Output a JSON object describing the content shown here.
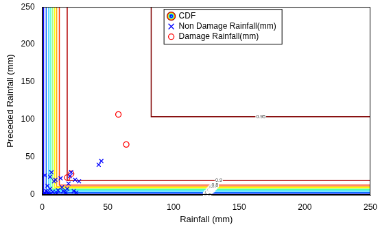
{
  "chart_data": {
    "type": "scatter",
    "x_label": "Rainfall (mm)",
    "y_label": "Preceded Rainfall (mm)",
    "xlim": [
      0,
      250
    ],
    "ylim": [
      0,
      250
    ],
    "xticks": [
      0,
      50,
      100,
      150,
      200,
      250
    ],
    "yticks": [
      0,
      50,
      100,
      150,
      200,
      250
    ],
    "grid": false,
    "legend": "top",
    "cdf": {
      "name": "CDF",
      "levels": [
        {
          "label": "0.1",
          "color": "#0000ff",
          "x": [
            1,
            1,
            250
          ],
          "y": [
            250,
            1,
            1
          ]
        },
        {
          "label": "0.2",
          "color": "#0066ff",
          "x": [
            3,
            3,
            250
          ],
          "y": [
            250,
            3,
            3
          ]
        },
        {
          "label": "0.3",
          "color": "#00ccff",
          "x": [
            5,
            5,
            250
          ],
          "y": [
            250,
            5,
            5
          ]
        },
        {
          "label": "0.4",
          "color": "#33ffcc",
          "x": [
            6.5,
            6.5,
            250
          ],
          "y": [
            250,
            6.5,
            6.5
          ]
        },
        {
          "label": "0.5",
          "color": "#99ff66",
          "x": [
            8,
            8,
            250
          ],
          "y": [
            250,
            8,
            8
          ]
        },
        {
          "label": "0.6",
          "color": "#ffff00",
          "x": [
            9.5,
            9.5,
            250
          ],
          "y": [
            250,
            9.5,
            9.5
          ]
        },
        {
          "label": "0.7",
          "color": "#ffaa00",
          "x": [
            11,
            11,
            250
          ],
          "y": [
            250,
            11,
            11
          ]
        },
        {
          "label": "0.8",
          "color": "#ff3300",
          "x": [
            13,
            13,
            250
          ],
          "y": [
            250,
            13,
            13
          ]
        },
        {
          "label": "0.9",
          "color": "#b30000",
          "x": [
            19,
            19,
            250
          ],
          "y": [
            250,
            19,
            19
          ]
        },
        {
          "label": "0.95",
          "color": "#800000",
          "x": [
            83,
            83,
            250
          ],
          "y": [
            250,
            104,
            104
          ]
        }
      ]
    },
    "series": [
      {
        "name": "Non Damage Rainfall(mm)",
        "color": "#0000ff",
        "marker": "x",
        "x": [
          2,
          3,
          5,
          6,
          8,
          4,
          7,
          10,
          12,
          15,
          18,
          20,
          22,
          25,
          28,
          24,
          26,
          14,
          9,
          1,
          3,
          5,
          11,
          16,
          19,
          45,
          43,
          21,
          2,
          6
        ],
        "y": [
          2,
          5,
          3,
          8,
          4,
          12,
          30,
          20,
          6,
          10,
          3,
          15,
          30,
          20,
          18,
          5,
          3,
          22,
          18,
          1,
          1,
          0.5,
          2,
          5,
          8,
          45,
          40,
          25,
          26,
          24
        ]
      },
      {
        "name": "Damage Rainfall(mm)",
        "color": "#ff0000",
        "marker": "o",
        "x": [
          58,
          64,
          19,
          22
        ],
        "y": [
          107,
          67,
          23,
          28
        ]
      }
    ]
  }
}
